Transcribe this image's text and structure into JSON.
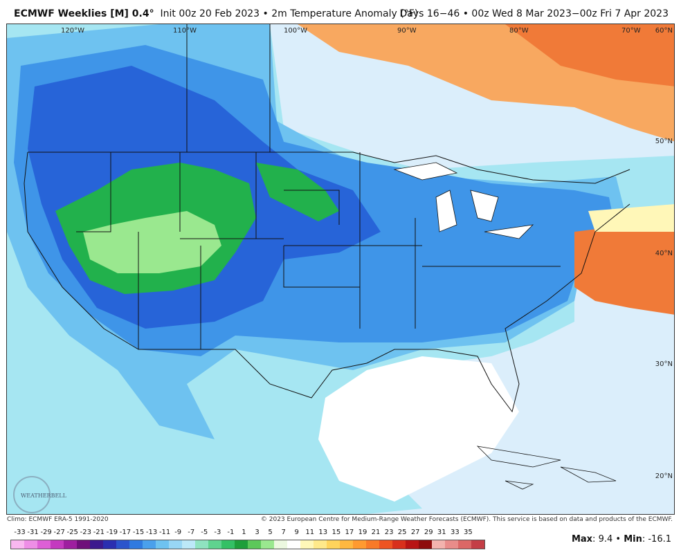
{
  "header": {
    "title_bold": "ECMWF Weeklies [M] 0.4°",
    "title_rest": "Init 00z 20 Feb 2023 • 2m Temperature Anomaly (°F)",
    "days": "Days 16−46 • 00z Wed 8 Mar 2023−00z Fri 7 Apr 2023"
  },
  "map": {
    "longitude_labels": [
      "120°W",
      "110°W",
      "100°W",
      "90°W",
      "80°W",
      "70°W"
    ],
    "latitude_labels": [
      "60°N",
      "50°N",
      "40°N",
      "30°N",
      "20°N"
    ],
    "watermark": "WEATHERBELL",
    "colors": {
      "ocean_pale": "#dbeefb",
      "light_cyan": "#a6e6f2",
      "sky_blue": "#6ec2f0",
      "medium_blue": "#3f95e8",
      "deep_blue": "#2764d8",
      "green": "#22b14c",
      "light_green": "#9ae88f",
      "pale_yellow": "#fff7b8",
      "orange": "#f8a860",
      "dark_orange": "#f07a38",
      "land_white": "#ffffff"
    }
  },
  "footer": {
    "climo": "Climo: ECMWF ERA-5 1991-2020",
    "copyright": "© 2023 European Centre for Medium-Range Weather Forecasts (ECMWF). This service is based on data and products of the ECMWF."
  },
  "legend": {
    "ticks": [
      "-33",
      "-31",
      "-29",
      "-27",
      "-25",
      "-23",
      "-21",
      "-19",
      "-17",
      "-15",
      "-13",
      "-11",
      "-9",
      "-7",
      "-5",
      "-3",
      "-1",
      "1",
      "3",
      "5",
      "7",
      "9",
      "11",
      "13",
      "15",
      "17",
      "19",
      "21",
      "23",
      "25",
      "27",
      "29",
      "31",
      "33",
      "35"
    ],
    "colors": [
      "#f9b8f0",
      "#ee8ee6",
      "#dd5fd6",
      "#c43abf",
      "#9e1f9f",
      "#6f0f7a",
      "#3c1a8e",
      "#2a2fb0",
      "#2b54cc",
      "#2f7ae0",
      "#4aa0ec",
      "#6ec2f0",
      "#98d6f5",
      "#bce8f8",
      "#8fe3c0",
      "#5fd38f",
      "#34c065",
      "#1e9e3a",
      "#5cc85a",
      "#9ae88f",
      "#ecf8e0",
      "#ffffff",
      "#fff7b8",
      "#ffe98a",
      "#ffd45c",
      "#ffb840",
      "#ff9a30",
      "#f87a28",
      "#ee5422",
      "#d8301c",
      "#b81414",
      "#8e0c0c",
      "#f3b3ae",
      "#e98c8a",
      "#db6766",
      "#c43e46"
    ]
  },
  "stats": {
    "max_label": "Max",
    "max_value": "9.4",
    "min_label": "Min",
    "min_value": "-16.1"
  }
}
